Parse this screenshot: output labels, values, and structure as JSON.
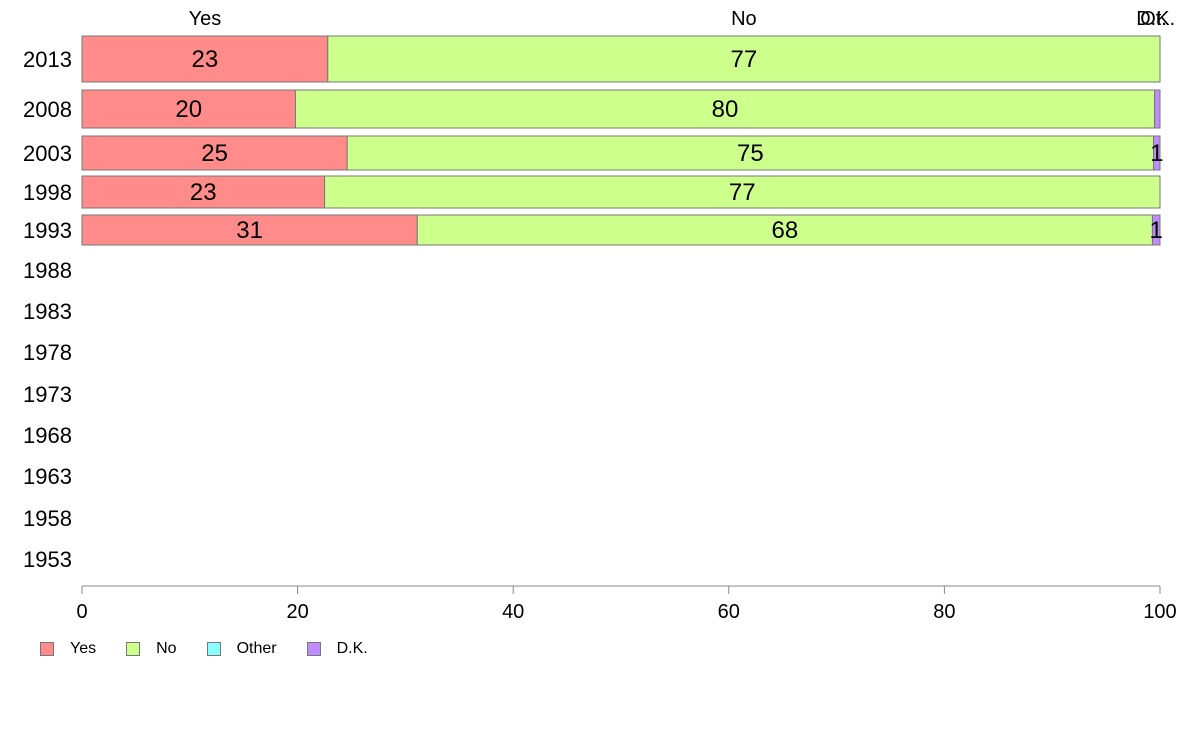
{
  "chart_data": {
    "type": "bar",
    "orientation": "horizontal",
    "stacked": true,
    "title": "",
    "xlabel": "",
    "ylabel": "",
    "xlim": [
      0,
      100
    ],
    "x_ticks": [
      "0",
      "20",
      "40",
      "60",
      "80",
      "100"
    ],
    "categories": [
      "2013",
      "2008",
      "2003",
      "1998",
      "1993",
      "1988",
      "1983",
      "1978",
      "1973",
      "1968",
      "1963",
      "1958",
      "1953"
    ],
    "top_labels": [
      "Yes",
      "No",
      "Other",
      "D.K."
    ],
    "series": [
      {
        "name": "Yes",
        "color": "#ff8b8b",
        "values": [
          22.8,
          19.8,
          24.6,
          22.5,
          31.1,
          null,
          null,
          null,
          null,
          null,
          null,
          null,
          null
        ],
        "labels": [
          "23",
          "20",
          "25",
          "23",
          "31",
          "",
          "",
          "",
          "",
          "",
          "",
          "",
          ""
        ]
      },
      {
        "name": "No",
        "color": "#ccff8b",
        "values": [
          77.2,
          79.7,
          74.8,
          77.5,
          68.2,
          null,
          null,
          null,
          null,
          null,
          null,
          null,
          null
        ],
        "labels": [
          "77",
          "80",
          "75",
          "77",
          "68",
          "",
          "",
          "",
          "",
          "",
          "",
          "",
          ""
        ]
      },
      {
        "name": "Other",
        "color": "#8bffff",
        "values": [
          0,
          0,
          0,
          0,
          0,
          null,
          null,
          null,
          null,
          null,
          null,
          null,
          null
        ],
        "labels": [
          "",
          "",
          "",
          "",
          "",
          "",
          "",
          "",
          "",
          "",
          "",
          "",
          ""
        ]
      },
      {
        "name": "D.K.",
        "color": "#c08bff",
        "values": [
          0,
          0.5,
          0.6,
          0,
          0.7,
          null,
          null,
          null,
          null,
          null,
          null,
          null,
          null
        ],
        "labels": [
          "",
          "",
          "1",
          "",
          "1",
          "",
          "",
          "",
          "",
          "",
          "",
          "",
          ""
        ]
      }
    ],
    "grid": false,
    "legend_position": "bottom-left"
  }
}
